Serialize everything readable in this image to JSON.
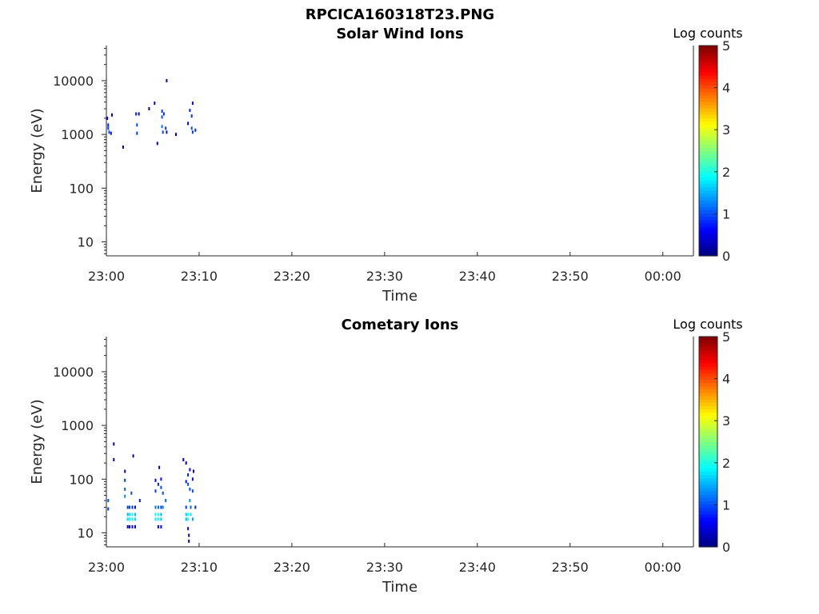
{
  "figure_title": "RPCICA160318T23.PNG",
  "colors": {
    "axis": "#262626",
    "background": "#ffffff",
    "colormap": "jet"
  },
  "chart_data": [
    {
      "type": "heatmap",
      "title": "Solar Wind Ions",
      "xlabel": "Time",
      "ylabel": "Energy (eV)",
      "x_ticks": [
        "23:00",
        "23:10",
        "23:20",
        "23:30",
        "23:40",
        "23:50",
        "00:00"
      ],
      "x_range_minutes": [
        0,
        63.3
      ],
      "y_scale": "log",
      "y_ticks": [
        "10",
        "100",
        "1000",
        "10000"
      ],
      "y_ticks_values": [
        10,
        100,
        1000,
        10000
      ],
      "ylim": [
        5.5,
        45000
      ],
      "colorbar": {
        "label": "Log counts",
        "ticks": [
          "0",
          "1",
          "2",
          "3",
          "4",
          "5"
        ],
        "range": [
          0,
          5
        ]
      },
      "cells": [
        {
          "t": 0.1,
          "e": 2000,
          "v": 0.5
        },
        {
          "t": 0.2,
          "e": 1500,
          "v": 0.8
        },
        {
          "t": 0.2,
          "e": 1300,
          "v": 0.9
        },
        {
          "t": 0.3,
          "e": 1100,
          "v": 1.0
        },
        {
          "t": 0.5,
          "e": 1050,
          "v": 0.7
        },
        {
          "t": 0.6,
          "e": 2300,
          "v": 0.4
        },
        {
          "t": 1.8,
          "e": 580,
          "v": 0.3
        },
        {
          "t": 3.2,
          "e": 2400,
          "v": 0.8
        },
        {
          "t": 3.3,
          "e": 1500,
          "v": 1.0
        },
        {
          "t": 3.3,
          "e": 1050,
          "v": 0.9
        },
        {
          "t": 3.5,
          "e": 2400,
          "v": 0.6
        },
        {
          "t": 4.6,
          "e": 3000,
          "v": 0.4
        },
        {
          "t": 5.2,
          "e": 3800,
          "v": 0.3
        },
        {
          "t": 5.5,
          "e": 680,
          "v": 0.3
        },
        {
          "t": 6.0,
          "e": 2700,
          "v": 0.9
        },
        {
          "t": 6.0,
          "e": 2100,
          "v": 1.0
        },
        {
          "t": 6.0,
          "e": 1400,
          "v": 1.2
        },
        {
          "t": 6.1,
          "e": 1100,
          "v": 1.0
        },
        {
          "t": 6.2,
          "e": 2400,
          "v": 0.8
        },
        {
          "t": 6.4,
          "e": 1300,
          "v": 0.9
        },
        {
          "t": 6.5,
          "e": 10000,
          "v": 0.3
        },
        {
          "t": 6.5,
          "e": 1100,
          "v": 0.7
        },
        {
          "t": 7.5,
          "e": 1000,
          "v": 0.4
        },
        {
          "t": 8.8,
          "e": 1600,
          "v": 0.5
        },
        {
          "t": 9.0,
          "e": 2800,
          "v": 0.8
        },
        {
          "t": 9.2,
          "e": 2200,
          "v": 0.9
        },
        {
          "t": 9.2,
          "e": 1300,
          "v": 1.0
        },
        {
          "t": 9.3,
          "e": 3800,
          "v": 0.6
        },
        {
          "t": 9.3,
          "e": 1100,
          "v": 0.9
        },
        {
          "t": 9.6,
          "e": 1200,
          "v": 0.8
        }
      ]
    },
    {
      "type": "heatmap",
      "title": "Cometary Ions",
      "xlabel": "Time",
      "ylabel": "Energy (eV)",
      "x_ticks": [
        "23:00",
        "23:10",
        "23:20",
        "23:30",
        "23:40",
        "23:50",
        "00:00"
      ],
      "x_range_minutes": [
        0,
        63.3
      ],
      "y_scale": "log",
      "y_ticks": [
        "10",
        "100",
        "1000",
        "10000"
      ],
      "y_ticks_values": [
        10,
        100,
        1000,
        10000
      ],
      "ylim": [
        5.5,
        45000
      ],
      "colorbar": {
        "label": "Log counts",
        "ticks": [
          "0",
          "1",
          "2",
          "3",
          "4",
          "5"
        ],
        "range": [
          0,
          5
        ]
      },
      "cells": [
        {
          "t": 0.2,
          "e": 40,
          "v": 1.0
        },
        {
          "t": 0.2,
          "e": 28,
          "v": 0.9
        },
        {
          "t": 0.8,
          "e": 450,
          "v": 0.3
        },
        {
          "t": 0.8,
          "e": 230,
          "v": 0.4
        },
        {
          "t": 2.0,
          "e": 140,
          "v": 0.6
        },
        {
          "t": 2.0,
          "e": 95,
          "v": 0.9
        },
        {
          "t": 2.0,
          "e": 65,
          "v": 1.1
        },
        {
          "t": 2.0,
          "e": 48,
          "v": 1.3
        },
        {
          "t": 2.3,
          "e": 30,
          "v": 0.9
        },
        {
          "t": 2.3,
          "e": 22,
          "v": 1.5
        },
        {
          "t": 2.3,
          "e": 18,
          "v": 1.7
        },
        {
          "t": 2.3,
          "e": 13,
          "v": 0.4
        },
        {
          "t": 2.5,
          "e": 30,
          "v": 1.0
        },
        {
          "t": 2.5,
          "e": 22,
          "v": 1.8
        },
        {
          "t": 2.5,
          "e": 18,
          "v": 1.9
        },
        {
          "t": 2.5,
          "e": 13,
          "v": 0.5
        },
        {
          "t": 2.8,
          "e": 30,
          "v": 0.8
        },
        {
          "t": 2.8,
          "e": 22,
          "v": 1.9
        },
        {
          "t": 2.8,
          "e": 18,
          "v": 1.8
        },
        {
          "t": 2.8,
          "e": 13,
          "v": 0.6
        },
        {
          "t": 2.9,
          "e": 270,
          "v": 0.3
        },
        {
          "t": 2.7,
          "e": 55,
          "v": 1.0
        },
        {
          "t": 3.1,
          "e": 30,
          "v": 0.7
        },
        {
          "t": 3.1,
          "e": 22,
          "v": 1.6
        },
        {
          "t": 3.1,
          "e": 18,
          "v": 1.7
        },
        {
          "t": 3.1,
          "e": 13,
          "v": 0.5
        },
        {
          "t": 3.6,
          "e": 40,
          "v": 0.7
        },
        {
          "t": 5.3,
          "e": 95,
          "v": 0.6
        },
        {
          "t": 5.3,
          "e": 60,
          "v": 0.9
        },
        {
          "t": 5.3,
          "e": 30,
          "v": 1.2
        },
        {
          "t": 5.3,
          "e": 22,
          "v": 1.9
        },
        {
          "t": 5.3,
          "e": 18,
          "v": 1.8
        },
        {
          "t": 5.6,
          "e": 80,
          "v": 0.8
        },
        {
          "t": 5.6,
          "e": 30,
          "v": 1.1
        },
        {
          "t": 5.6,
          "e": 22,
          "v": 2.0
        },
        {
          "t": 5.6,
          "e": 18,
          "v": 1.9
        },
        {
          "t": 5.6,
          "e": 13,
          "v": 0.6
        },
        {
          "t": 5.7,
          "e": 165,
          "v": 0.3
        },
        {
          "t": 5.9,
          "e": 100,
          "v": 0.7
        },
        {
          "t": 5.9,
          "e": 70,
          "v": 1.0
        },
        {
          "t": 5.9,
          "e": 30,
          "v": 0.9
        },
        {
          "t": 5.9,
          "e": 22,
          "v": 1.5
        },
        {
          "t": 5.9,
          "e": 18,
          "v": 1.6
        },
        {
          "t": 5.9,
          "e": 13,
          "v": 0.5
        },
        {
          "t": 6.1,
          "e": 55,
          "v": 1.0
        },
        {
          "t": 6.1,
          "e": 30,
          "v": 1.3
        },
        {
          "t": 6.4,
          "e": 40,
          "v": 1.1
        },
        {
          "t": 8.3,
          "e": 230,
          "v": 0.3
        },
        {
          "t": 8.6,
          "e": 200,
          "v": 0.4
        },
        {
          "t": 8.6,
          "e": 90,
          "v": 0.7
        },
        {
          "t": 8.6,
          "e": 30,
          "v": 0.9
        },
        {
          "t": 8.6,
          "e": 22,
          "v": 1.6
        },
        {
          "t": 8.6,
          "e": 18,
          "v": 1.5
        },
        {
          "t": 8.8,
          "e": 120,
          "v": 0.8
        },
        {
          "t": 8.8,
          "e": 80,
          "v": 1.0
        },
        {
          "t": 8.8,
          "e": 22,
          "v": 1.9
        },
        {
          "t": 8.8,
          "e": 18,
          "v": 2.0
        },
        {
          "t": 8.8,
          "e": 12,
          "v": 0.6
        },
        {
          "t": 8.9,
          "e": 9,
          "v": 0.4
        },
        {
          "t": 8.9,
          "e": 7,
          "v": 0.3
        },
        {
          "t": 9.0,
          "e": 150,
          "v": 0.6
        },
        {
          "t": 9.0,
          "e": 65,
          "v": 1.0
        },
        {
          "t": 9.0,
          "e": 40,
          "v": 1.3
        },
        {
          "t": 9.1,
          "e": 30,
          "v": 1.1
        },
        {
          "t": 9.1,
          "e": 22,
          "v": 1.8
        },
        {
          "t": 9.3,
          "e": 100,
          "v": 0.7
        },
        {
          "t": 9.3,
          "e": 60,
          "v": 1.0
        },
        {
          "t": 9.3,
          "e": 18,
          "v": 1.4
        },
        {
          "t": 9.4,
          "e": 140,
          "v": 0.5
        },
        {
          "t": 9.6,
          "e": 30,
          "v": 0.8
        }
      ]
    }
  ]
}
